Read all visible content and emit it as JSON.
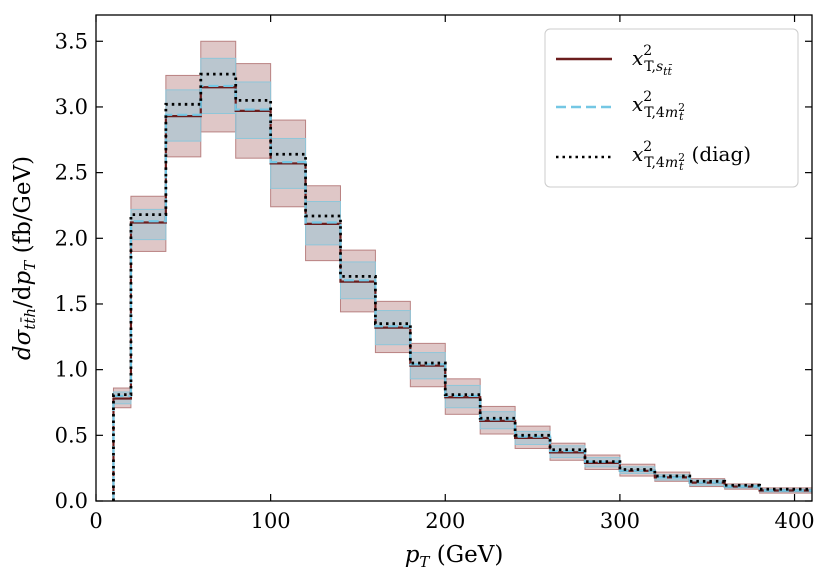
{
  "chart_data": {
    "type": "step-histogram",
    "xlabel": "p_T (GeV)",
    "ylabel": "dσ_{tt̄h}/dp_T (fb/GeV)",
    "xlim": [
      0,
      410
    ],
    "ylim": [
      0,
      3.7
    ],
    "x_ticks": [
      0,
      100,
      200,
      300,
      400
    ],
    "y_ticks": [
      0.0,
      0.5,
      1.0,
      1.5,
      2.0,
      2.5,
      3.0,
      3.5
    ],
    "x_tick_labels": [
      "0",
      "100",
      "200",
      "300",
      "400"
    ],
    "y_tick_labels": [
      "0.0",
      "0.5",
      "1.0",
      "1.5",
      "2.0",
      "2.5",
      "3.0",
      "3.5"
    ],
    "bin_edges": [
      10,
      20,
      40,
      60,
      80,
      100,
      120,
      140,
      160,
      180,
      200,
      220,
      240,
      260,
      280,
      300,
      320,
      340,
      360,
      380,
      410
    ],
    "legend_position": "top-right",
    "series": [
      {
        "name": "x²_{T,s_tt̄}",
        "color": "#6b1d1d",
        "linestyle": "solid",
        "values": [
          0.78,
          2.12,
          2.93,
          3.15,
          2.97,
          2.57,
          2.11,
          1.67,
          1.32,
          1.03,
          0.79,
          0.61,
          0.48,
          0.37,
          0.29,
          0.23,
          0.18,
          0.14,
          0.11,
          0.08
        ],
        "band_low": [
          0.71,
          1.9,
          2.62,
          2.81,
          2.61,
          2.24,
          1.83,
          1.44,
          1.13,
          0.87,
          0.66,
          0.51,
          0.4,
          0.31,
          0.24,
          0.19,
          0.15,
          0.11,
          0.09,
          0.06
        ],
        "band_high": [
          0.86,
          2.32,
          3.24,
          3.5,
          3.33,
          2.9,
          2.4,
          1.91,
          1.52,
          1.2,
          0.93,
          0.72,
          0.57,
          0.44,
          0.35,
          0.28,
          0.22,
          0.17,
          0.13,
          0.1
        ],
        "band_color": "#b98282"
      },
      {
        "name": "x²_{T,4m_t²}",
        "color": "#74c7e4",
        "linestyle": "dashed",
        "values": [
          0.8,
          2.13,
          2.94,
          3.16,
          2.98,
          2.58,
          2.12,
          1.68,
          1.33,
          1.04,
          0.8,
          0.62,
          0.49,
          0.38,
          0.3,
          0.23,
          0.18,
          0.14,
          0.11,
          0.08
        ],
        "band_low": [
          0.74,
          1.99,
          2.74,
          2.95,
          2.76,
          2.38,
          1.95,
          1.54,
          1.19,
          0.93,
          0.71,
          0.55,
          0.43,
          0.33,
          0.26,
          0.21,
          0.16,
          0.12,
          0.1,
          0.07
        ],
        "band_high": [
          0.83,
          2.22,
          3.13,
          3.37,
          3.19,
          2.76,
          2.28,
          1.82,
          1.45,
          1.13,
          0.88,
          0.68,
          0.53,
          0.42,
          0.33,
          0.26,
          0.2,
          0.16,
          0.12,
          0.09
        ],
        "band_color": "#8fc6d9"
      },
      {
        "name": "x²_{T,4m_t²} (diag)",
        "color": "#000000",
        "linestyle": "dotted",
        "values": [
          0.81,
          2.18,
          3.02,
          3.25,
          3.05,
          2.64,
          2.17,
          1.71,
          1.35,
          1.05,
          0.81,
          0.63,
          0.5,
          0.39,
          0.3,
          0.24,
          0.19,
          0.15,
          0.12,
          0.09
        ]
      }
    ]
  }
}
